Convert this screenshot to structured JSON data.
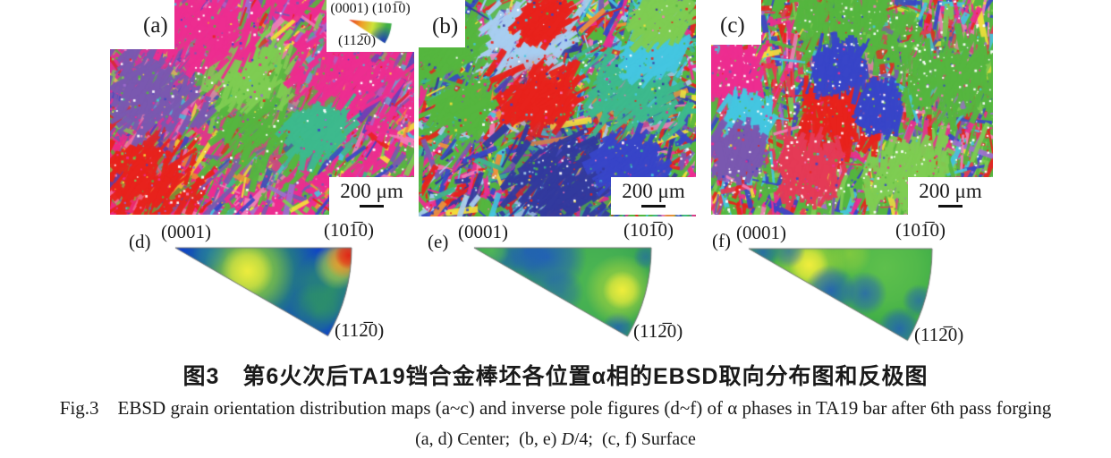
{
  "maps": [
    {
      "label": "(a)",
      "scale_label": "200 μm"
    },
    {
      "label": "(b)",
      "scale_label": "200 μm"
    },
    {
      "label": "(c)",
      "scale_label": "200 μm"
    }
  ],
  "color_key": {
    "top_labels": "(0001) (101̅0)",
    "bottom_label": "(112̅0)"
  },
  "ipfs": [
    {
      "label": "(d)",
      "apex_label": "(0001)",
      "right_label": "(101̅0)",
      "corner_label": "(112̅0)"
    },
    {
      "label": "(e)",
      "apex_label": "(0001)",
      "right_label": "(101̅0)",
      "corner_label": "(112̅0)"
    },
    {
      "label": "(f)",
      "apex_label": "(0001)",
      "right_label": "(101̅0)",
      "corner_label": "(112̅0)"
    }
  ],
  "captions": {
    "zh": "图3 第6火次后TA19铛合金棒坯各位置α相的EBSD取向分布图和反极图",
    "en": "Fig.3 EBSD grain orientation distribution maps (a~c) and inverse pole figures (d~f) of α phases in TA19 bar after 6th pass forging",
    "sub_prefix": "(a, d) Center; (b, e) ",
    "sub_italic": "D",
    "sub_suffix": "/4; (c, f) Surface"
  },
  "render": {
    "key_wedge_colors": [
      "#e02818",
      "#f0a028",
      "#cfe23a",
      "#3fae48",
      "#2038c0"
    ],
    "ebsd": [
      {
        "seed": 7,
        "n": 1600,
        "angle": -55,
        "spread": 55,
        "speckles": 650,
        "white": 150,
        "palette": [
          [
            "#ed2d90",
            26
          ],
          [
            "#f27db8",
            8
          ],
          [
            "#7a58b0",
            12
          ],
          [
            "#55b63f",
            16
          ],
          [
            "#7ecc52",
            6
          ],
          [
            "#e8231c",
            6
          ],
          [
            "#45c6e0",
            4
          ],
          [
            "#3db98d",
            4
          ],
          [
            "#f2903a",
            3
          ],
          [
            "#f5e13a",
            3
          ],
          [
            "#3846c8",
            6
          ],
          [
            "#a06cd0",
            6
          ]
        ],
        "regions": [
          [
            0.13,
            0.85,
            0.2,
            "#e8231c"
          ],
          [
            0.52,
            0.55,
            0.26,
            "#55b63f"
          ],
          [
            0.45,
            0.33,
            0.16,
            "#7ecc52"
          ],
          [
            0.13,
            0.42,
            0.2,
            "#7a58b0"
          ],
          [
            0.82,
            0.35,
            0.26,
            "#ed2d90"
          ],
          [
            0.3,
            0.14,
            0.18,
            "#ed2d90"
          ],
          [
            0.68,
            0.62,
            0.11,
            "#3db98d"
          ]
        ]
      },
      {
        "seed": 13,
        "n": 1600,
        "angle": -45,
        "spread": 85,
        "speckles": 650,
        "white": 90,
        "palette": [
          [
            "#55b63f",
            16
          ],
          [
            "#a8cdf0",
            8
          ],
          [
            "#45c6e0",
            7
          ],
          [
            "#3db98d",
            9
          ],
          [
            "#e8231c",
            13
          ],
          [
            "#3846c8",
            11
          ],
          [
            "#333a9e",
            8
          ],
          [
            "#ed2d90",
            8
          ],
          [
            "#7a58b0",
            5
          ],
          [
            "#f5e13a",
            4
          ],
          [
            "#f2903a",
            3
          ],
          [
            "#f27db8",
            4
          ]
        ],
        "regions": [
          [
            0.38,
            0.17,
            0.18,
            "#a8cdf0"
          ],
          [
            0.42,
            0.45,
            0.16,
            "#e8231c"
          ],
          [
            0.45,
            0.1,
            0.09,
            "#e8231c"
          ],
          [
            0.78,
            0.42,
            0.2,
            "#3db98d"
          ],
          [
            0.85,
            0.25,
            0.11,
            "#45c6e0"
          ],
          [
            0.5,
            0.85,
            0.24,
            "#333a9e"
          ],
          [
            0.75,
            0.75,
            0.13,
            "#3846c8"
          ],
          [
            0.1,
            0.2,
            0.13,
            "#55b63f"
          ],
          [
            0.88,
            0.08,
            0.11,
            "#7ecc52"
          ],
          [
            0.15,
            0.5,
            0.11,
            "#55b63f"
          ]
        ]
      },
      {
        "seed": 21,
        "n": 1500,
        "angle": -80,
        "spread": 55,
        "speckles": 600,
        "white": 380,
        "palette": [
          [
            "#55b63f",
            22
          ],
          [
            "#7ecc52",
            10
          ],
          [
            "#e8231c",
            8
          ],
          [
            "#e53a56",
            7
          ],
          [
            "#ed2d90",
            9
          ],
          [
            "#f27db8",
            4
          ],
          [
            "#3846c8",
            9
          ],
          [
            "#45c6e0",
            5
          ],
          [
            "#7a58b0",
            5
          ],
          [
            "#f5e13a",
            3
          ],
          [
            "#a06cd0",
            4
          ]
        ],
        "regions": [
          [
            0.5,
            0.12,
            0.24,
            "#55b63f"
          ],
          [
            0.85,
            0.35,
            0.2,
            "#55b63f"
          ],
          [
            0.7,
            0.8,
            0.16,
            "#7ecc52"
          ],
          [
            0.45,
            0.55,
            0.17,
            "#e8231c"
          ],
          [
            0.35,
            0.78,
            0.13,
            "#e53a56"
          ],
          [
            0.45,
            0.32,
            0.1,
            "#3846c8"
          ],
          [
            0.6,
            0.5,
            0.09,
            "#3846c8"
          ],
          [
            0.07,
            0.35,
            0.13,
            "#ed2d90"
          ],
          [
            0.13,
            0.55,
            0.09,
            "#45c6e0"
          ],
          [
            0.1,
            0.7,
            0.1,
            "#7a58b0"
          ]
        ]
      }
    ],
    "ipf": [
      {
        "apex": [
          16,
          10
        ],
        "R": 197,
        "base": "#0c3ecf",
        "blobs": [
          [
            0.45,
            17,
            0.42,
            "#37a94a",
            0.85
          ],
          [
            0.44,
            18,
            0.26,
            "#9fd53a",
            0.9
          ],
          [
            0.43,
            18,
            0.15,
            "#f2ee3e",
            0.95
          ],
          [
            0.92,
            14,
            0.22,
            "#37a94a",
            0.75
          ],
          [
            0.88,
            24,
            0.16,
            "#37a94a",
            0.6
          ],
          [
            0.93,
            6,
            0.14,
            "#cfe23a",
            0.8
          ],
          [
            0.96,
            4,
            0.11,
            "#f08a28",
            0.9
          ],
          [
            0.985,
            2.5,
            0.08,
            "#e02818",
            1
          ],
          [
            0.2,
            8,
            0.1,
            "#2f8fb0",
            0.4
          ]
        ]
      },
      {
        "apex": [
          16,
          10
        ],
        "R": 198,
        "base": "#35a352",
        "blobs": [
          [
            0.7,
            15,
            0.35,
            "#58bf52",
            0.7
          ],
          [
            0.42,
            7,
            0.22,
            "#1e54c8",
            0.8
          ],
          [
            0.3,
            4,
            0.14,
            "#1e54c8",
            0.6
          ],
          [
            0.18,
            24,
            0.12,
            "#1e54c8",
            0.55
          ],
          [
            0.55,
            27,
            0.13,
            "#1e54c8",
            0.5
          ],
          [
            0.93,
            29,
            0.09,
            "#1e54c8",
            0.7
          ],
          [
            0.86,
            16,
            0.2,
            "#a8d63c",
            0.85
          ],
          [
            0.87,
            16,
            0.11,
            "#f4ef3c",
            0.95
          ],
          [
            0.97,
            3,
            0.07,
            "#1e54c8",
            0.5
          ],
          [
            0.1,
            10,
            0.1,
            "#58bf52",
            0.8
          ]
        ]
      },
      {
        "apex": [
          16,
          10
        ],
        "R": 205,
        "base": "#3fae48",
        "blobs": [
          [
            0.75,
            8,
            0.3,
            "#6cc84e",
            0.7
          ],
          [
            0.34,
            15,
            0.2,
            "#b2dc3a",
            0.9
          ],
          [
            0.34,
            15,
            0.11,
            "#f4ef3c",
            0.95
          ],
          [
            0.5,
            27,
            0.14,
            "#1e54c8",
            0.8
          ],
          [
            0.68,
            21,
            0.12,
            "#1e54c8",
            0.7
          ],
          [
            0.08,
            15,
            0.09,
            "#1e54c8",
            0.7
          ],
          [
            0.22,
            4,
            0.09,
            "#1e54c8",
            0.55
          ],
          [
            0.93,
            28,
            0.12,
            "#1e54c8",
            0.75
          ],
          [
            0.97,
            17,
            0.09,
            "#1e54c8",
            0.6
          ],
          [
            0.55,
            3,
            0.12,
            "#9fd53a",
            0.6
          ]
        ]
      }
    ]
  }
}
